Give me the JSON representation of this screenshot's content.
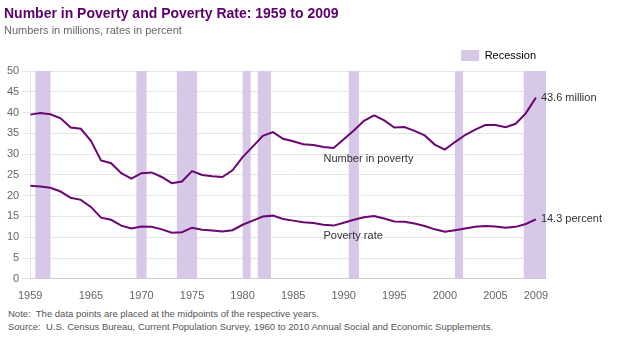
{
  "chart_data": {
    "type": "line",
    "title": "Number in Poverty and Poverty Rate: 1959 to 2009",
    "subtitle": "Numbers in millions, rates in percent",
    "x": [
      1959,
      1960,
      1961,
      1962,
      1963,
      1964,
      1965,
      1966,
      1967,
      1968,
      1969,
      1970,
      1971,
      1972,
      1973,
      1974,
      1975,
      1976,
      1977,
      1978,
      1979,
      1980,
      1981,
      1982,
      1983,
      1984,
      1985,
      1986,
      1987,
      1988,
      1989,
      1990,
      1991,
      1992,
      1993,
      1994,
      1995,
      1996,
      1997,
      1998,
      1999,
      2000,
      2001,
      2002,
      2003,
      2004,
      2005,
      2006,
      2007,
      2008,
      2009
    ],
    "series": [
      {
        "name": "Number in poverty",
        "color": "#6B0772",
        "end_label": "43.6 million",
        "values": [
          39.5,
          39.9,
          39.6,
          38.6,
          36.4,
          36.1,
          33.2,
          28.5,
          27.8,
          25.4,
          24.1,
          25.4,
          25.6,
          24.5,
          23.0,
          23.4,
          25.9,
          25.0,
          24.7,
          24.5,
          26.1,
          29.3,
          31.8,
          34.4,
          35.3,
          33.7,
          33.1,
          32.4,
          32.2,
          31.7,
          31.5,
          33.6,
          35.7,
          38.0,
          39.3,
          38.1,
          36.4,
          36.5,
          35.6,
          34.5,
          32.3,
          31.1,
          32.9,
          34.6,
          35.9,
          37.0,
          37.0,
          36.5,
          37.3,
          39.8,
          43.6
        ]
      },
      {
        "name": "Poverty rate",
        "color": "#6B0772",
        "end_label": "14.3 percent",
        "values": [
          22.4,
          22.2,
          21.9,
          21.0,
          19.5,
          19.0,
          17.3,
          14.7,
          14.2,
          12.8,
          12.1,
          12.6,
          12.5,
          11.9,
          11.1,
          11.2,
          12.3,
          11.8,
          11.6,
          11.4,
          11.7,
          13.0,
          14.0,
          15.0,
          15.2,
          14.4,
          14.0,
          13.6,
          13.4,
          13.0,
          12.8,
          13.5,
          14.2,
          14.8,
          15.1,
          14.5,
          13.8,
          13.7,
          13.3,
          12.7,
          11.9,
          11.3,
          11.7,
          12.1,
          12.5,
          12.7,
          12.6,
          12.3,
          12.5,
          13.2,
          14.3
        ]
      }
    ],
    "recession_bands": {
      "name": "Recession",
      "color": "#D8C8E8",
      "ranges": [
        [
          1959.5,
          1961.0
        ],
        [
          1969.5,
          1970.5
        ],
        [
          1973.5,
          1975.5
        ],
        [
          1980.0,
          1980.8
        ],
        [
          1981.5,
          1982.8
        ],
        [
          1990.5,
          1991.5
        ],
        [
          2001.0,
          2001.8
        ],
        [
          2007.8,
          2010.0
        ]
      ]
    },
    "xlim": [
      1959,
      2010
    ],
    "xticks": [
      1959,
      1965,
      1970,
      1975,
      1980,
      1985,
      1990,
      1995,
      2000,
      2005,
      2009
    ],
    "ylim": [
      0,
      50
    ],
    "yticks": [
      0,
      5,
      10,
      15,
      20,
      25,
      30,
      35,
      40,
      45,
      50
    ],
    "grid": "y",
    "legend": "upper right",
    "note": "Note:  The data points are placed at the midpoints of the respective years.",
    "source": "Source:  U.S. Census Bureau, Current Population Survey, 1960 to 2010 Annual Social and Economic Supplements."
  }
}
